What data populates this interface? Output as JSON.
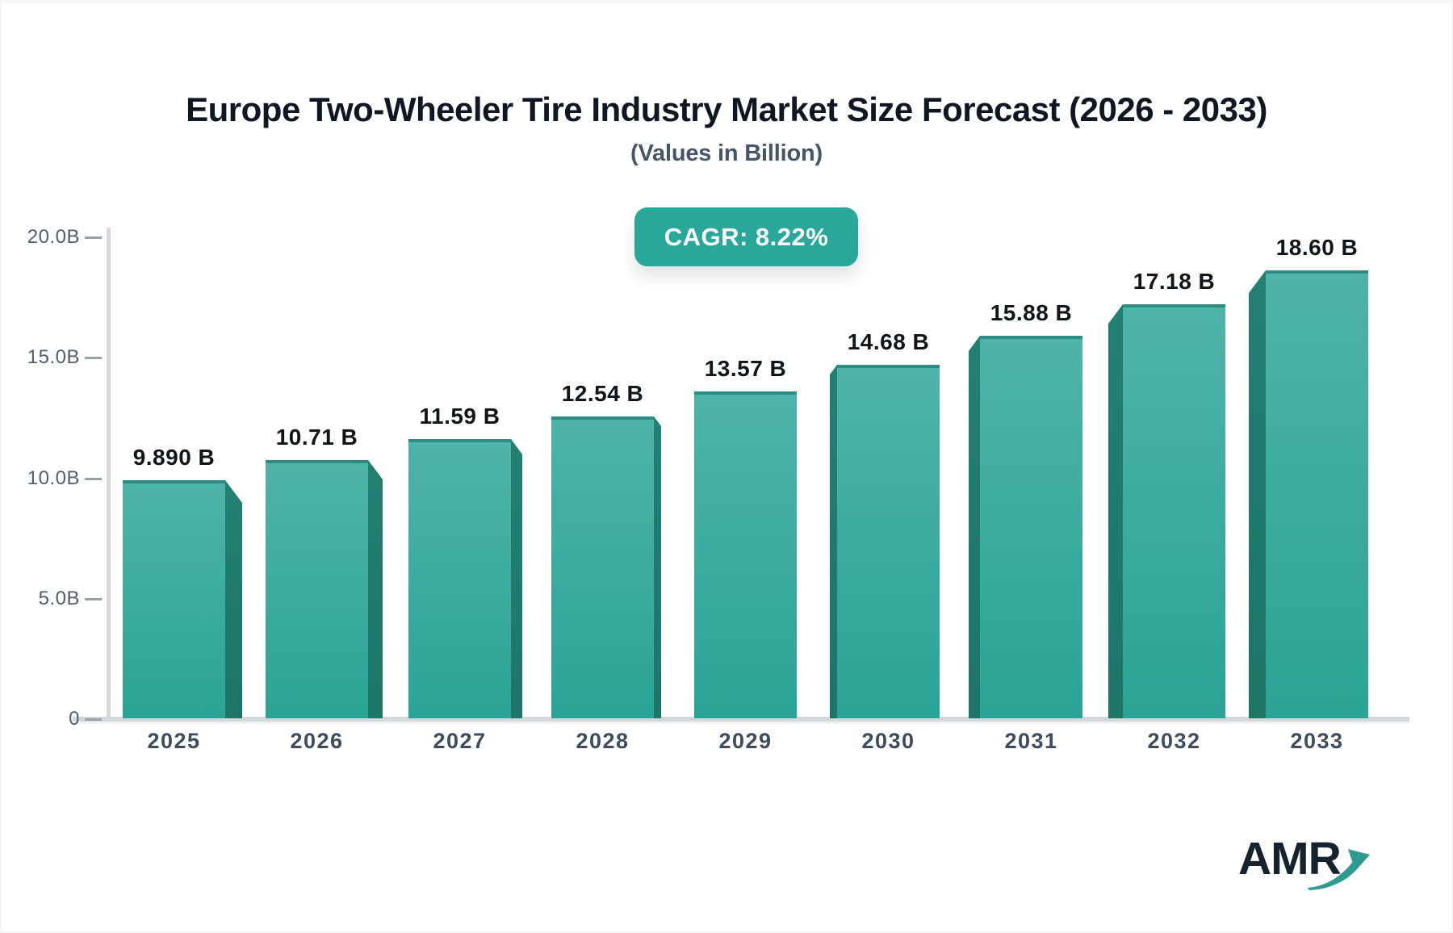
{
  "header": {
    "title": "Europe Two-Wheeler Tire Industry Market Size Forecast (2026 - 2033)",
    "subtitle": "(Values in Billion)",
    "cagr_badge": "CAGR: 8.22%"
  },
  "chart_data": {
    "type": "bar",
    "title": "Europe Two-Wheeler Tire Industry Market Size Forecast (2026 - 2033)",
    "subtitle": "(Values in Billion)",
    "unit": "Billion",
    "cagr_percent": 8.22,
    "categories": [
      "2025",
      "2026",
      "2027",
      "2028",
      "2029",
      "2030",
      "2031",
      "2032",
      "2033"
    ],
    "values": [
      9.89,
      10.71,
      11.59,
      12.54,
      13.57,
      14.68,
      15.88,
      17.18,
      18.6
    ],
    "value_labels": [
      "9.890 B",
      "10.71 B",
      "11.59 B",
      "12.54 B",
      "13.57 B",
      "14.68 B",
      "15.88 B",
      "17.18 B",
      "18.60 B"
    ],
    "xlabel": "",
    "ylabel": "",
    "ylim": [
      0,
      20
    ],
    "yticks": [
      {
        "value": 0,
        "label": "0"
      },
      {
        "value": 5,
        "label": "5.0B"
      },
      {
        "value": 10,
        "label": "10.0B"
      },
      {
        "value": 15,
        "label": "15.0B"
      },
      {
        "value": 20,
        "label": "20.0B"
      }
    ],
    "grid": false,
    "legend": false,
    "bar_style": "3d-gradient-teal"
  },
  "colors": {
    "bar_face_top": "#4fb3a8",
    "bar_face_bottom": "#2aa496",
    "bar_top_edge": "#2e8d82",
    "bar_side": "#228073",
    "bar_side_deep": "#1d7568",
    "badge_bg": "#29a79a",
    "badge_text": "#ffffff",
    "title_text": "#101722",
    "subtitle_text": "#475569",
    "axis_text": "#4f5e6d",
    "year_text": "#3d4c5e",
    "value_text": "#10151a",
    "axis_line": "#d5d8db",
    "tick_dash": "#98a1ab",
    "logo_text": "#16222e",
    "logo_arrow": "#2d9c8e"
  },
  "logo": {
    "text": "AMR",
    "arrow_icon": "trend-up-arrow"
  }
}
